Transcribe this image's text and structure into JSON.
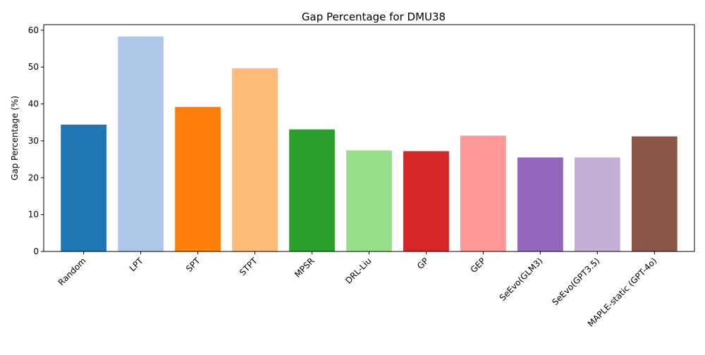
{
  "chart_data": {
    "type": "bar",
    "title": "Gap Percentage for DMU38",
    "xlabel": "",
    "ylabel": "Gap Percentage (%)",
    "categories": [
      "Random",
      "LPT",
      "SPT",
      "STPT",
      "MPSR",
      "DRL-Liu",
      "GP",
      "GEP",
      "SeEvo(GLM3)",
      "SeEvo(GPT3.5)",
      "MAPLE-static (GPT-4o)"
    ],
    "values": [
      34.4,
      58.3,
      39.2,
      49.7,
      33.1,
      27.4,
      27.2,
      31.4,
      25.5,
      25.5,
      31.2
    ],
    "colors": [
      "#1f77b4",
      "#aec7e8",
      "#ff7f0e",
      "#ffbb78",
      "#2ca02c",
      "#98df8a",
      "#d62728",
      "#ff9896",
      "#9467bd",
      "#c5b0d5",
      "#8c564b"
    ],
    "ylim": [
      0,
      61.5
    ],
    "yticks": [
      0,
      10,
      20,
      30,
      40,
      50,
      60
    ],
    "grid": false,
    "legend": "none"
  }
}
